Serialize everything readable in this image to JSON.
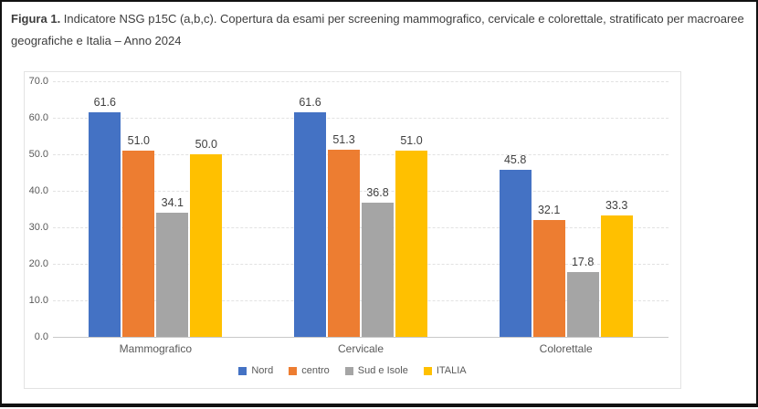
{
  "caption": {
    "label": "Figura 1.",
    "text": " Indicatore NSG p15C (a,b,c). Copertura da esami per screening mammografico, cervicale e colorettale, stratificato per macroaree geografiche e Italia – Anno 2024"
  },
  "chart_data": {
    "type": "bar",
    "title": "",
    "categories": [
      "Mammografico",
      "Cervicale",
      "Colorettale"
    ],
    "series": [
      {
        "name": "Nord",
        "color": "#4472C4",
        "values": [
          61.6,
          61.6,
          45.8
        ]
      },
      {
        "name": "centro",
        "color": "#ED7D31",
        "values": [
          51.0,
          51.3,
          32.1
        ]
      },
      {
        "name": "Sud e Isole",
        "color": "#A5A5A5",
        "values": [
          34.1,
          36.8,
          17.8
        ]
      },
      {
        "name": "ITALIA",
        "color": "#FFC000",
        "values": [
          50.0,
          51.0,
          33.3
        ]
      }
    ],
    "ylim": [
      0,
      70
    ],
    "ytick_step": 10,
    "ytick_decimals": 1,
    "data_label_decimals": 1,
    "grid": true,
    "legend_position": "bottom",
    "colors": {
      "data_label": "#404040",
      "axis_label": "#595959",
      "gridline": "#e2e2e2"
    }
  }
}
